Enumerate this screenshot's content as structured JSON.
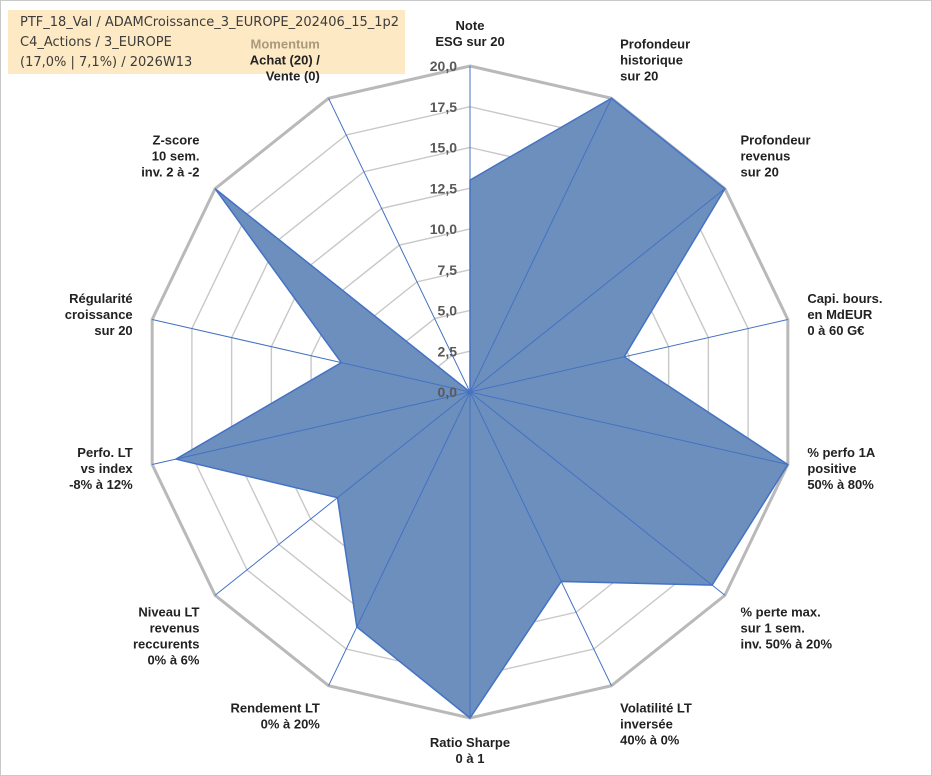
{
  "header": {
    "line1": "PTF_18_Val / ADAMCroissance_3_EUROPE_202406_15_1p2",
    "line2": "C4_Actions / 3_EUROPE",
    "line3": "(17,0% | 7,1%) / 2026W13"
  },
  "chart_data": {
    "type": "radar",
    "title": "",
    "rlim": [
      0,
      20
    ],
    "ticks": [
      "0,0",
      "2,5",
      "5,0",
      "7,5",
      "10,0",
      "12,5",
      "15,0",
      "17,5",
      "20,0"
    ],
    "grid": true,
    "colors": {
      "fill": "#6d8fbd",
      "stroke": "#4472c4",
      "grid": "#c8c8c8",
      "outer_ring": "#b9b9b9",
      "spoke": "#4472c4",
      "category_header": "#a99a7c"
    },
    "axes": [
      {
        "lines": [
          "Note",
          "ESG sur 20"
        ],
        "value": 13
      },
      {
        "lines": [
          "Profondeur",
          "historique",
          "sur 20"
        ],
        "value": 20
      },
      {
        "lines": [
          "Profondeur",
          "revenus",
          "sur 20"
        ],
        "value": 20
      },
      {
        "lines": [
          "Capi. bours.",
          "en MdEUR",
          "0 à 60 G€"
        ],
        "value": 9.7
      },
      {
        "lines": [
          "% perfo 1A",
          "positive",
          "50% à 80%"
        ],
        "value": 20
      },
      {
        "lines": [
          "% perte max.",
          "sur 1 sem.",
          "inv. 50% à 20%"
        ],
        "value": 19
      },
      {
        "lines": [
          "Volatilité LT",
          "inversée",
          "40% à 0%"
        ],
        "value": 12.9
      },
      {
        "lines": [
          "Ratio Sharpe",
          "0 à 1"
        ],
        "value": 20
      },
      {
        "lines": [
          "Rendement LT",
          "0% à 20%"
        ],
        "value": 16
      },
      {
        "lines": [
          "Niveau LT",
          "revenus",
          "reccurents",
          "0% à 6%"
        ],
        "value": 10.4
      },
      {
        "lines": [
          "Perfo. LT",
          "vs index",
          "-8% à 12%"
        ],
        "value": 18.5
      },
      {
        "lines": [
          "Régularité",
          "croissance",
          "sur 20"
        ],
        "value": 8.1
      },
      {
        "lines": [
          "Z-score",
          "10 sem.",
          "inv. 2 à -2"
        ],
        "value": 20
      },
      {
        "category": "Momentum",
        "lines": [
          "Achat (20) /",
          "Vente (0)"
        ],
        "value": 0
      }
    ]
  }
}
